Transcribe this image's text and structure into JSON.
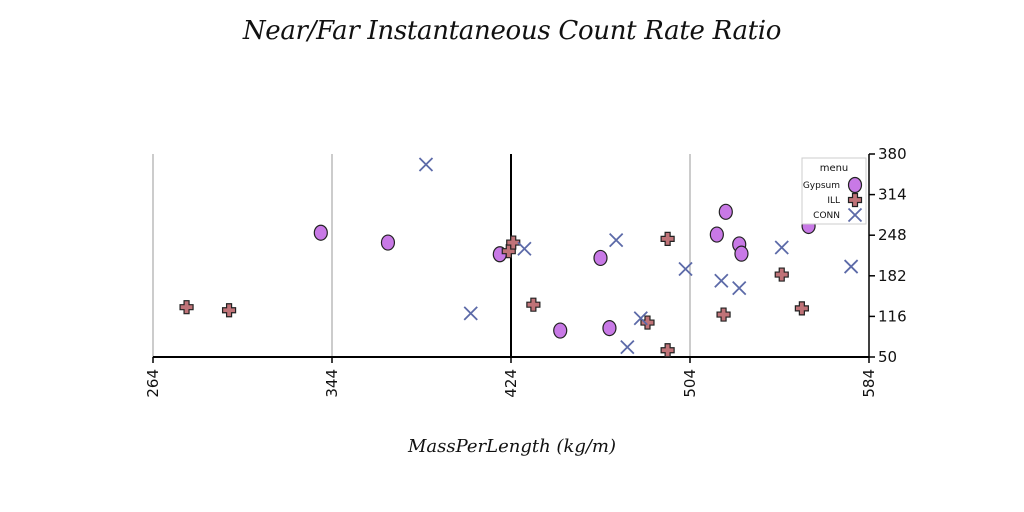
{
  "chart_data": {
    "type": "scatter",
    "title": "Near/Far Instantaneous Count Rate Ratio",
    "xlabel": "MassPerLength (kg/m)",
    "ylabel": "",
    "xlim": [
      264,
      584
    ],
    "ylim": [
      50,
      380
    ],
    "x_ticks": [
      264,
      344,
      424,
      504,
      584
    ],
    "y_ticks": [
      50,
      116,
      182,
      248,
      314,
      380
    ],
    "vertical_gridlines_at": [
      264,
      344,
      504
    ],
    "highlight_line_x": 424,
    "grid": true,
    "legend": {
      "title": "menu",
      "position": "top-right"
    },
    "series": [
      {
        "name": "Gypsum",
        "marker": "circle",
        "color": "#c879e6",
        "points": [
          [
            339,
            252
          ],
          [
            369,
            236
          ],
          [
            419,
            217
          ],
          [
            446,
            93
          ],
          [
            464,
            211
          ],
          [
            468,
            97
          ],
          [
            516,
            249
          ],
          [
            520,
            286
          ],
          [
            526,
            233
          ],
          [
            527,
            218
          ],
          [
            557,
            263
          ]
        ]
      },
      {
        "name": "ILL",
        "marker": "plus",
        "color": "#c07378",
        "points": [
          [
            279,
            131
          ],
          [
            298,
            126
          ],
          [
            423,
            222
          ],
          [
            425,
            236
          ],
          [
            434,
            135
          ],
          [
            485,
            106
          ],
          [
            494,
            242
          ],
          [
            494,
            61
          ],
          [
            519,
            119
          ],
          [
            545,
            184
          ],
          [
            554,
            129
          ]
        ]
      },
      {
        "name": "CONN",
        "marker": "x",
        "color": "#5c6aa8",
        "points": [
          [
            386,
            363
          ],
          [
            406,
            121
          ],
          [
            430,
            226
          ],
          [
            471,
            240
          ],
          [
            476,
            66
          ],
          [
            482,
            113
          ],
          [
            502,
            193
          ],
          [
            518,
            174
          ],
          [
            526,
            162
          ],
          [
            545,
            228
          ],
          [
            576,
            197
          ]
        ]
      }
    ]
  }
}
